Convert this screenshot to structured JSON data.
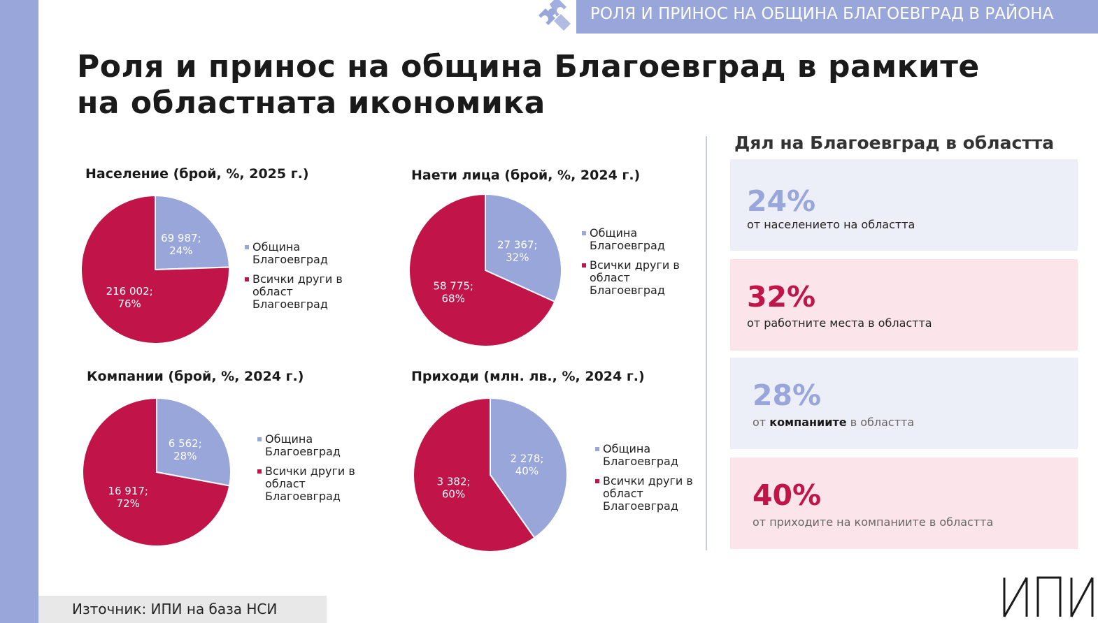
{
  "banner": {
    "text": "РОЛЯ И ПРИНОС НА ОБЩИНА БЛАГОЕВГРАД В РАЙОНА"
  },
  "title": "Роля и принос на община Благоевград в рамките на областната икономика",
  "colors": {
    "municipality": "#98a6da",
    "others": "#c1154a",
    "band": "#98a6da"
  },
  "legend": {
    "municipality": "Община Благоевград",
    "others": "Всички други в област Благоевград"
  },
  "chart_data": [
    {
      "type": "pie",
      "title": "Население (брой, %, 2025 г.)",
      "slices": [
        {
          "name": "Община Благоевград",
          "value": 69987,
          "value_label": "69 987;",
          "pct_label": "24%"
        },
        {
          "name": "Всички други в област Благоевград",
          "value": 216002,
          "value_label": "216 002;",
          "pct_label": "76%"
        }
      ]
    },
    {
      "type": "pie",
      "title": "Наети лица (брой, %, 2024 г.)",
      "slices": [
        {
          "name": "Община Благоевград",
          "value": 27367,
          "value_label": "27 367;",
          "pct_label": "32%"
        },
        {
          "name": "Всички други в област Благоевград",
          "value": 58775,
          "value_label": "58 775;",
          "pct_label": "68%"
        }
      ]
    },
    {
      "type": "pie",
      "title": "Компании (брой, %, 2024 г.)",
      "slices": [
        {
          "name": "Община Благоевград",
          "value": 6562,
          "value_label": "6 562;",
          "pct_label": "28%"
        },
        {
          "name": "Всички други в област Благоевград",
          "value": 16917,
          "value_label": "16 917;",
          "pct_label": "72%"
        }
      ]
    },
    {
      "type": "pie",
      "title": "Приходи (млн. лв., %, 2024 г.)",
      "slices": [
        {
          "name": "Община Благоевград",
          "value": 2278,
          "value_label": "2 278;",
          "pct_label": "40%"
        },
        {
          "name": "Всички други в област Благоевград",
          "value": 3382,
          "value_label": "3 382;",
          "pct_label": "60%"
        }
      ]
    }
  ],
  "share": {
    "heading": "Дял на Благоевград в областта",
    "cards": [
      {
        "pct": "24%",
        "text": "от населението на областта",
        "pct_color": "#98a6da"
      },
      {
        "pct": "32%",
        "text": "от работните места в областта",
        "pct_color": "#c1154a"
      },
      {
        "pct": "28%",
        "text_before": "от",
        "text_bold": "компаниите",
        "text_after": "в областта",
        "pct_color": "#98a6da"
      },
      {
        "pct": "40%",
        "text": "от приходите на компаниите в областта",
        "pct_color": "#c1154a"
      }
    ]
  },
  "source": "Източник: ИПИ на база НСИ",
  "logo": {
    "text": "ИПИ"
  }
}
